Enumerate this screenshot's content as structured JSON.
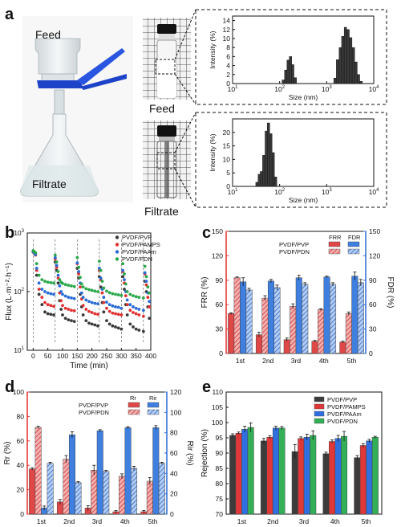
{
  "panels": {
    "a": {
      "label": "a",
      "photo_labels": {
        "feed": "Feed",
        "filtrate": "Filtrate"
      },
      "vial_labels": {
        "feed": "Feed",
        "filtrate": "Filtrate"
      },
      "dls_feed": {
        "xlabel": "Size (nm)",
        "ylabel": "Intensity (%)",
        "xticks": [
          "10",
          "10",
          "10",
          "10"
        ],
        "xticks_sup": [
          "1",
          "2",
          "3",
          "4"
        ],
        "yticks": [
          "0",
          "2",
          "4",
          "6",
          "8",
          "10",
          "12",
          "14"
        ]
      },
      "dls_filtrate": {
        "xlabel": "Size (nm)",
        "ylabel": "Intensity (%)",
        "xticks": [
          "10",
          "10",
          "10",
          "10"
        ],
        "xticks_sup": [
          "1",
          "2",
          "3",
          "4"
        ],
        "yticks": [
          "0",
          "5",
          "10",
          "15",
          "20"
        ]
      }
    },
    "b": {
      "label": "b",
      "xlabel": "Time (min)",
      "ylabel": "Flux (L·m⁻²·h⁻¹)",
      "xticks": [
        "0",
        "50",
        "100",
        "150",
        "200",
        "250",
        "300",
        "350",
        "400"
      ],
      "yticks": [
        "10",
        "10",
        "10"
      ],
      "yticks_sup": [
        "1",
        "2",
        "3"
      ]
    },
    "c": {
      "label": "c",
      "ylabel_left": "FRR (%)",
      "ylabel_right": "FDR (%)",
      "yticks": [
        "0",
        "30",
        "60",
        "90",
        "120",
        "150"
      ],
      "legend_head": [
        "FRR",
        "FDR"
      ],
      "legend_rows": [
        "PVDF/PVP",
        "PVDF/PDN"
      ]
    },
    "d": {
      "label": "d",
      "ylabel_left": "Rr (%)",
      "ylabel_right": "Rir (%)",
      "yticks_left": [
        "0",
        "20",
        "40",
        "60",
        "80",
        "100"
      ],
      "yticks_right": [
        "0",
        "20",
        "40",
        "60",
        "80",
        "100",
        "120"
      ],
      "legend_head": [
        "Rr",
        "Rir"
      ],
      "legend_rows": [
        "PVDF/PVP",
        "PVDF/PDN"
      ]
    },
    "e": {
      "label": "e",
      "ylabel": "Rejection (%)",
      "yticks": [
        "70",
        "75",
        "80",
        "85",
        "90",
        "95",
        "100",
        "105",
        "110"
      ]
    }
  },
  "chart_data": [
    {
      "type": "bar",
      "panel": "a-feed",
      "x_scale": "log",
      "xlim": [
        10,
        10000
      ],
      "ylim": [
        0,
        15
      ],
      "xlabel": "Size (nm)",
      "ylabel": "Intensity (%)",
      "x": [
        120,
        135,
        152,
        170,
        190,
        215,
        1500,
        1700,
        1950,
        2200,
        2500,
        2850,
        3250,
        3700,
        4200,
        4750,
        5400
      ],
      "values": [
        0.8,
        3.0,
        5.2,
        6.0,
        4.2,
        1.3,
        1.2,
        5.3,
        8.0,
        10.5,
        12.5,
        12.0,
        10.2,
        8.0,
        4.8,
        2.0,
        0.5
      ]
    },
    {
      "type": "bar",
      "panel": "a-filtrate",
      "x_scale": "log",
      "xlim": [
        10,
        10000
      ],
      "ylim": [
        0,
        25
      ],
      "xlabel": "Size (nm)",
      "ylabel": "Intensity (%)",
      "x": [
        33,
        37,
        41,
        46,
        52,
        58,
        65,
        73,
        82
      ],
      "values": [
        1.5,
        4.5,
        5.5,
        11.5,
        20.5,
        23.5,
        19.5,
        12.5,
        3.5
      ]
    },
    {
      "type": "scatter",
      "panel": "b",
      "y_scale": "log",
      "xlim": [
        -20,
        400
      ],
      "ylim": [
        10,
        1000
      ],
      "xlabel": "Time (min)",
      "ylabel": "Flux (L·m⁻²·h⁻¹)",
      "series": [
        {
          "name": "PVDF/PVP",
          "color": "#3a3a3a",
          "x": [
            0,
            4,
            8,
            12,
            20,
            30,
            40,
            50,
            60,
            70,
            75,
            80,
            85,
            90,
            95,
            100,
            110,
            120,
            130,
            140,
            150,
            155,
            160,
            165,
            170,
            180,
            190,
            200,
            210,
            220,
            225,
            230,
            235,
            240,
            250,
            260,
            270,
            280,
            290,
            300,
            305,
            310,
            315,
            320,
            330,
            340,
            350,
            360,
            375,
            380,
            385,
            390,
            395
          ],
          "y": [
            490,
            460,
            440,
            190,
            90,
            60,
            45,
            42,
            41,
            40,
            320,
            230,
            140,
            70,
            50,
            40,
            35,
            33,
            32,
            31,
            250,
            170,
            90,
            55,
            40,
            32,
            29,
            28,
            27,
            26,
            180,
            120,
            65,
            45,
            32,
            28,
            26,
            25,
            24,
            23,
            180,
            110,
            60,
            40,
            28,
            25,
            23,
            22,
            21,
            150,
            100,
            55,
            35
          ]
        },
        {
          "name": "PVDF/PAMPS",
          "color": "#e03030",
          "x": [
            0,
            4,
            8,
            12,
            20,
            30,
            40,
            50,
            60,
            70,
            75,
            80,
            85,
            90,
            95,
            100,
            110,
            120,
            130,
            140,
            150,
            155,
            160,
            165,
            170,
            180,
            190,
            200,
            210,
            220,
            225,
            230,
            235,
            240,
            250,
            260,
            270,
            280,
            290,
            300,
            305,
            310,
            315,
            320,
            330,
            340,
            350,
            360,
            375,
            380,
            385,
            390,
            395
          ],
          "y": [
            470,
            450,
            420,
            230,
            110,
            80,
            65,
            60,
            58,
            56,
            360,
            260,
            170,
            95,
            70,
            58,
            52,
            50,
            48,
            47,
            300,
            200,
            120,
            75,
            58,
            50,
            46,
            44,
            42,
            41,
            230,
            160,
            95,
            65,
            52,
            46,
            43,
            42,
            41,
            40,
            220,
            140,
            85,
            60,
            48,
            44,
            42,
            40,
            38,
            200,
            130,
            80,
            55
          ]
        },
        {
          "name": "PVDF/PAAm",
          "color": "#2a6bd6",
          "x": [
            0,
            4,
            8,
            12,
            20,
            30,
            40,
            50,
            60,
            70,
            75,
            80,
            85,
            90,
            95,
            100,
            110,
            120,
            130,
            140,
            150,
            155,
            160,
            165,
            170,
            180,
            190,
            200,
            210,
            220,
            225,
            230,
            235,
            240,
            250,
            260,
            270,
            280,
            290,
            300,
            305,
            310,
            315,
            320,
            330,
            340,
            350,
            360,
            375,
            380,
            385,
            390,
            395
          ],
          "y": [
            480,
            455,
            430,
            250,
            140,
            110,
            100,
            95,
            92,
            90,
            380,
            280,
            190,
            125,
            100,
            90,
            84,
            80,
            78,
            76,
            310,
            220,
            140,
            95,
            80,
            72,
            68,
            65,
            63,
            62,
            250,
            170,
            110,
            80,
            66,
            60,
            57,
            55,
            54,
            52,
            230,
            160,
            100,
            72,
            60,
            55,
            52,
            50,
            48,
            210,
            150,
            95,
            68
          ]
        },
        {
          "name": "PVDF/PDN",
          "color": "#2aa84a",
          "x": [
            0,
            4,
            8,
            12,
            20,
            30,
            40,
            50,
            60,
            70,
            75,
            80,
            85,
            90,
            95,
            100,
            110,
            120,
            130,
            140,
            150,
            155,
            160,
            165,
            170,
            180,
            190,
            200,
            210,
            220,
            225,
            230,
            235,
            240,
            250,
            260,
            270,
            280,
            290,
            300,
            305,
            310,
            315,
            320,
            330,
            340,
            350,
            360,
            375,
            380,
            385,
            390,
            395
          ],
          "y": [
            500,
            480,
            460,
            300,
            190,
            160,
            150,
            145,
            142,
            140,
            420,
            320,
            220,
            160,
            145,
            138,
            132,
            128,
            125,
            122,
            380,
            260,
            175,
            135,
            120,
            112,
            108,
            105,
            102,
            100,
            330,
            230,
            150,
            115,
            102,
            96,
            92,
            90,
            88,
            86,
            300,
            200,
            135,
            100,
            90,
            85,
            82,
            80,
            78,
            270,
            180,
            120,
            95
          ]
        }
      ]
    },
    {
      "type": "bar",
      "panel": "c",
      "categories": [
        "1st",
        "2nd",
        "3rd",
        "4th",
        "5th"
      ],
      "ylim_left": [
        0,
        150
      ],
      "ylim_right": [
        0,
        150
      ],
      "ylabel_left": "FRR (%)",
      "ylabel_right": "FDR (%)",
      "series": [
        {
          "name": "PVDF/PVP FRR",
          "axis": "left",
          "color": "#e04848",
          "pattern": "solid",
          "values": [
            49,
            23,
            17,
            15,
            14
          ],
          "err": [
            1,
            3,
            2,
            1,
            1
          ]
        },
        {
          "name": "PVDF/PDN FRR",
          "axis": "left",
          "color": "#e04848",
          "pattern": "hatch",
          "values": [
            93,
            68,
            58,
            54,
            49
          ],
          "err": [
            1,
            3,
            3,
            1,
            2
          ]
        },
        {
          "name": "PVDF/PVP FDR",
          "axis": "right",
          "color": "#3e7fe0",
          "pattern": "solid",
          "values": [
            88,
            89,
            93,
            94,
            95
          ],
          "err": [
            5,
            2,
            3,
            1,
            5
          ]
        },
        {
          "name": "PVDF/PDN FDR",
          "axis": "right",
          "color": "#3e7fe0",
          "pattern": "hatch",
          "values": [
            78,
            81,
            85,
            85,
            87
          ],
          "err": [
            2,
            3,
            2,
            2,
            4
          ]
        }
      ]
    },
    {
      "type": "bar",
      "panel": "d",
      "categories": [
        "1st",
        "2nd",
        "3rd",
        "4th",
        "5th"
      ],
      "ylim_left": [
        0,
        100
      ],
      "ylim_right": [
        0,
        120
      ],
      "ylabel_left": "Rr (%)",
      "ylabel_right": "Rir (%)",
      "series": [
        {
          "name": "PVDF/PVP Rr",
          "axis": "left",
          "color": "#e04848",
          "pattern": "solid",
          "values": [
            37,
            10,
            5,
            2,
            2
          ],
          "err": [
            1,
            2,
            2,
            1,
            1
          ]
        },
        {
          "name": "PVDF/PDN Rr",
          "axis": "left",
          "color": "#e04848",
          "pattern": "hatch",
          "values": [
            71,
            45,
            36,
            31,
            27
          ],
          "err": [
            1,
            3,
            4,
            2,
            3
          ]
        },
        {
          "name": "PVDF/PVP Rir",
          "axis": "right",
          "color": "#3e7fe0",
          "pattern": "solid",
          "values": [
            6,
            78,
            82,
            85,
            85
          ],
          "err": [
            2,
            3,
            1,
            1,
            2
          ]
        },
        {
          "name": "PVDF/PDN Rir",
          "axis": "right",
          "color": "#3e7fe0",
          "pattern": "hatch",
          "values": [
            50,
            31,
            42,
            45,
            50
          ],
          "err": [
            1,
            1,
            1,
            2,
            1
          ]
        }
      ]
    },
    {
      "type": "bar",
      "panel": "e",
      "categories": [
        "1st",
        "2nd",
        "3rd",
        "4th",
        "5th"
      ],
      "ylim": [
        70,
        110
      ],
      "ylabel": "Rejection (%)",
      "series": [
        {
          "name": "PVDF/PVP",
          "color": "#3c3c3c",
          "values": [
            95.8,
            94.0,
            90.5,
            89.8,
            88.5
          ],
          "err": [
            0.5,
            0.8,
            2.3,
            0.5,
            0.7
          ]
        },
        {
          "name": "PVDF/PAMPS",
          "color": "#e03838",
          "values": [
            96.5,
            95.2,
            94.8,
            93.8,
            92.5
          ],
          "err": [
            0.4,
            0.5,
            0.5,
            0.5,
            0.6
          ]
        },
        {
          "name": "PVDF/PAAm",
          "color": "#2f6fe0",
          "values": [
            97.8,
            98.2,
            95.2,
            94.8,
            94.0
          ],
          "err": [
            1.0,
            0.6,
            1.0,
            1.0,
            0.5
          ]
        },
        {
          "name": "PVDF/PDN",
          "color": "#33b057",
          "values": [
            98.4,
            98.2,
            95.8,
            95.5,
            95.2
          ],
          "err": [
            1.5,
            0.5,
            1.5,
            1.6,
            0.3
          ]
        }
      ]
    }
  ]
}
